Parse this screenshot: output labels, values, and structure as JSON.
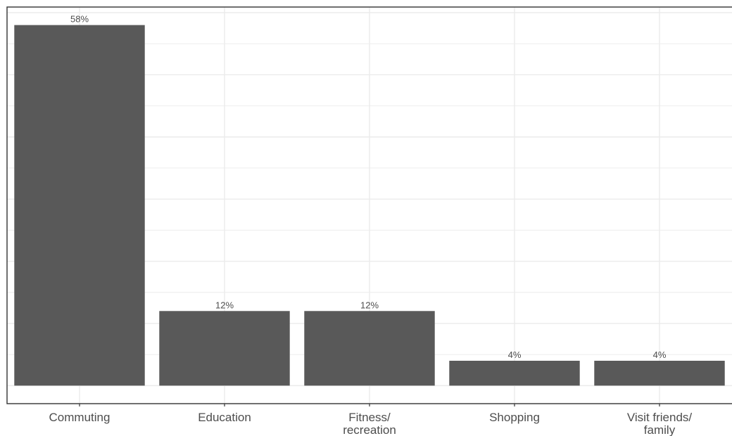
{
  "chart_data": {
    "type": "bar",
    "categories": [
      [
        "Commuting"
      ],
      [
        "Education"
      ],
      [
        "Fitness/",
        "recreation"
      ],
      [
        "Shopping"
      ],
      [
        "Visit friends/",
        "family"
      ]
    ],
    "values": [
      58,
      12,
      12,
      4,
      4
    ],
    "data_labels": [
      "58%",
      "12%",
      "12%",
      "4%",
      "4%"
    ],
    "ylim": [
      -2.9,
      60.9
    ],
    "grid": true,
    "bar_color": "#595959",
    "grid_color": "#ebebeb",
    "axis_color": "#333333"
  }
}
